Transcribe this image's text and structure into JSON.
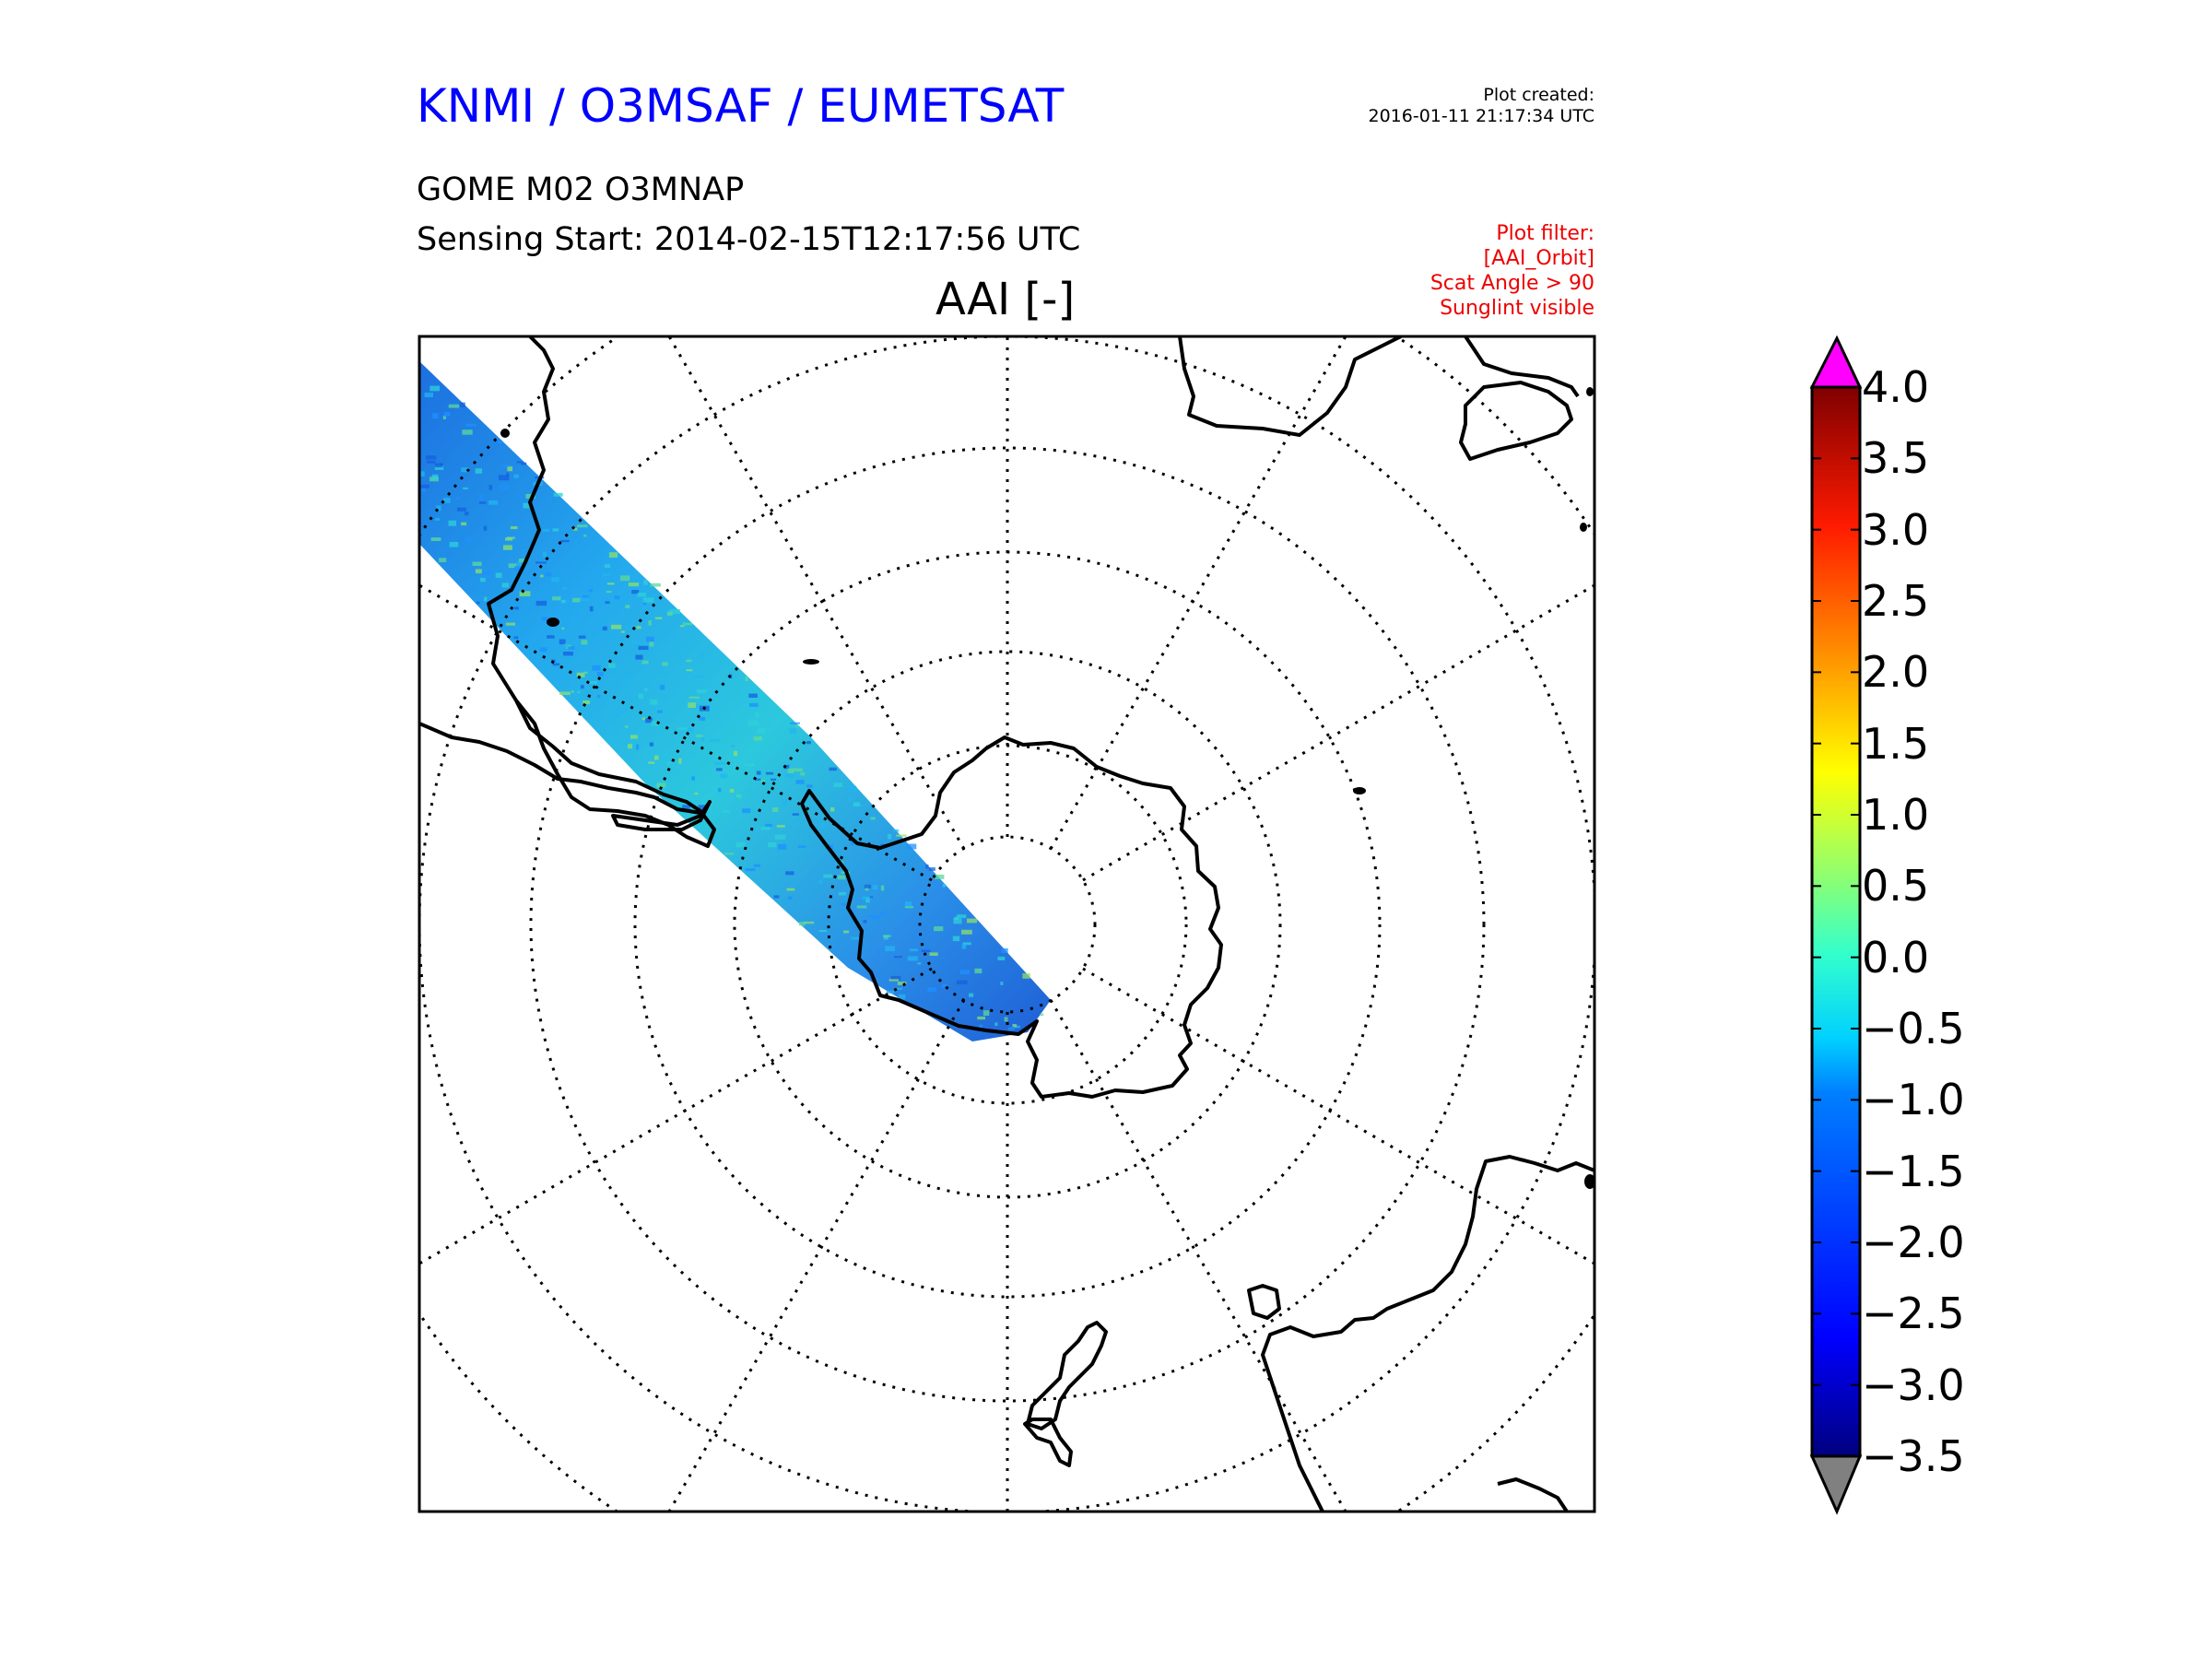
{
  "header": {
    "org_title": "KNMI / O3MSAF / EUMETSAT",
    "created_label": "Plot created:",
    "created_time": "2016-01-11 21:17:34 UTC",
    "product": "GOME M02 O3MNAP",
    "sensing_start": "Sensing Start: 2014-02-15T12:17:56 UTC",
    "filter": [
      "Plot filter:",
      "[AAI_Orbit]",
      "Scat Angle > 90",
      "Sunglint visible"
    ]
  },
  "map": {
    "title": "AAI [-]",
    "projection": "south-polar-stereographic",
    "graticule": "dotted",
    "swath_colors": [
      "#1560e0",
      "#1e90ff",
      "#22b5f0",
      "#2fd0d8",
      "#5ed89a",
      "#8ee06a"
    ]
  },
  "colorbar": {
    "ticks": [
      "4.0",
      "3.5",
      "3.0",
      "2.5",
      "2.0",
      "1.5",
      "1.0",
      "0.5",
      "0.0",
      "−0.5",
      "−1.0",
      "−1.5",
      "−2.0",
      "−2.5",
      "−3.0",
      "−3.5"
    ],
    "min": -3.5,
    "max": 4.0,
    "over_color": "#ff00ff",
    "under_color": "#808080",
    "cmap": [
      "#00007f",
      "#0000ff",
      "#007fff",
      "#00ffff",
      "#7fff7f",
      "#ffff00",
      "#ff7f00",
      "#ff0000",
      "#7f0000"
    ]
  }
}
